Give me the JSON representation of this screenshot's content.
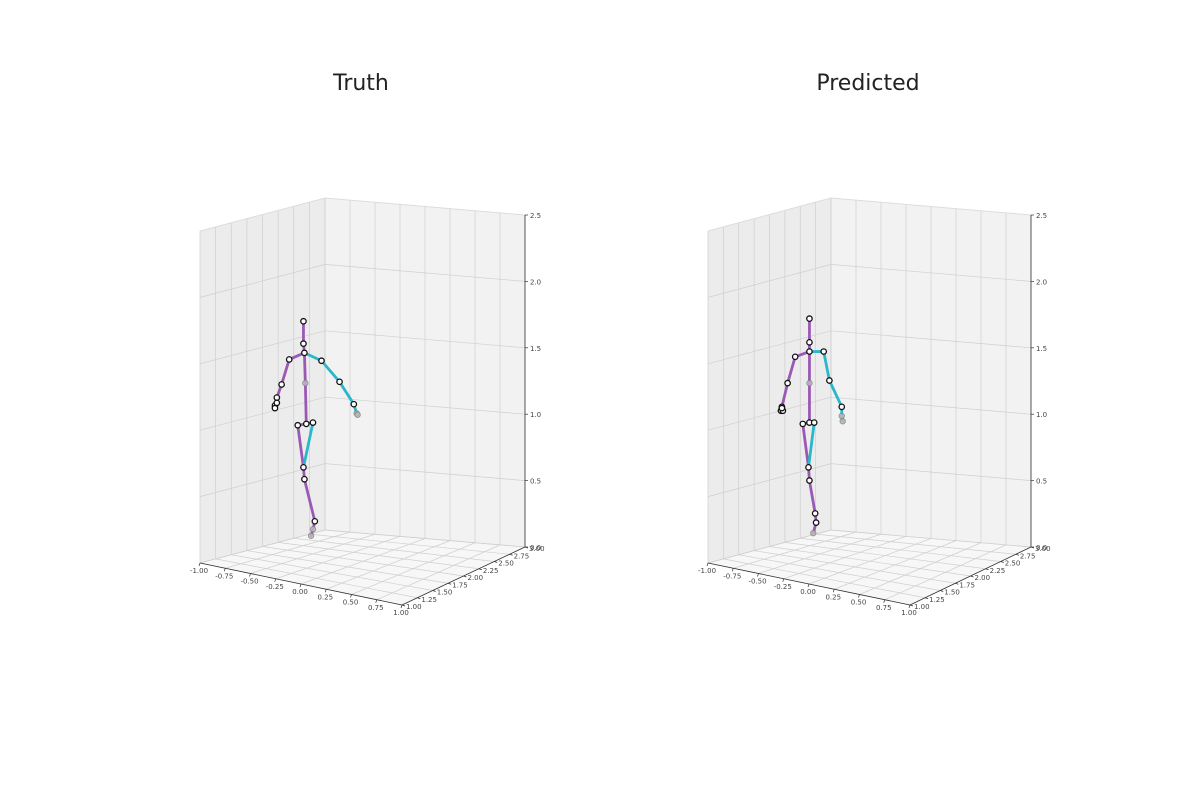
{
  "colors": {
    "left_limb": "#9b59b6",
    "right_limb": "#2ab7c9",
    "spine": "#9b59b6"
  },
  "chart_data": [
    {
      "type": "scatter3d",
      "title": "Truth",
      "xlabel": "",
      "ylabel": "",
      "zlabel": "",
      "xlim": [
        -1.0,
        1.0
      ],
      "ylim": [
        1.0,
        3.0
      ],
      "zlim": [
        0.0,
        2.5
      ],
      "xticks": [
        "-1.00",
        "-0.75",
        "-0.50",
        "-0.25",
        "0.00",
        "0.25",
        "0.50",
        "0.75",
        "1.00"
      ],
      "yticks": [
        "1.00",
        "1.25",
        "1.50",
        "1.75",
        "2.00",
        "2.25",
        "2.50",
        "2.75",
        "3.00"
      ],
      "zticks": [
        "0.0",
        "0.5",
        "1.0",
        "1.5",
        "2.0",
        "2.5"
      ],
      "grid": true,
      "joints": [
        {
          "name": "head-top",
          "x": 0.26,
          "y": 2.0,
          "z": 1.7
        },
        {
          "name": "neck",
          "x": 0.26,
          "y": 2.0,
          "z": 1.53
        },
        {
          "name": "spine-top",
          "x": 0.27,
          "y": 2.0,
          "z": 1.46
        },
        {
          "name": "spine-mid",
          "x": 0.28,
          "y": 2.0,
          "z": 1.23
        },
        {
          "name": "pelvis",
          "x": 0.29,
          "y": 2.0,
          "z": 0.92
        },
        {
          "name": "left-shoulder",
          "x": 0.11,
          "y": 2.0,
          "z": 1.41
        },
        {
          "name": "left-elbow",
          "x": 0.03,
          "y": 2.0,
          "z": 1.22
        },
        {
          "name": "left-wrist",
          "x": -0.02,
          "y": 2.0,
          "z": 1.12
        },
        {
          "name": "left-hand-a",
          "x": -0.04,
          "y": 2.0,
          "z": 1.06
        },
        {
          "name": "left-hand-b",
          "x": -0.04,
          "y": 2.0,
          "z": 1.04
        },
        {
          "name": "left-hand-c",
          "x": -0.02,
          "y": 2.0,
          "z": 1.08
        },
        {
          "name": "right-shoulder",
          "x": 0.45,
          "y": 2.0,
          "z": 1.4
        },
        {
          "name": "right-elbow",
          "x": 0.64,
          "y": 2.0,
          "z": 1.24
        },
        {
          "name": "right-wrist",
          "x": 0.79,
          "y": 2.0,
          "z": 1.07
        },
        {
          "name": "right-hand-a",
          "x": 0.82,
          "y": 2.0,
          "z": 1.0
        },
        {
          "name": "right-hand-b",
          "x": 0.83,
          "y": 2.0,
          "z": 0.99
        },
        {
          "name": "left-hip",
          "x": 0.2,
          "y": 2.0,
          "z": 0.91
        },
        {
          "name": "right-hip",
          "x": 0.36,
          "y": 2.0,
          "z": 0.93
        },
        {
          "name": "left-knee",
          "x": 0.26,
          "y": 2.0,
          "z": 0.59
        },
        {
          "name": "left-knee-b",
          "x": 0.27,
          "y": 2.0,
          "z": 0.5
        },
        {
          "name": "left-ankle",
          "x": 0.38,
          "y": 2.0,
          "z": 0.18
        },
        {
          "name": "left-foot",
          "x": 0.36,
          "y": 2.0,
          "z": 0.12
        },
        {
          "name": "left-toe",
          "x": 0.34,
          "y": 2.0,
          "z": 0.07
        }
      ],
      "bones": [
        {
          "from": "head-top",
          "to": "neck",
          "side": "spine"
        },
        {
          "from": "neck",
          "to": "spine-top",
          "side": "spine"
        },
        {
          "from": "spine-top",
          "to": "spine-mid",
          "side": "spine"
        },
        {
          "from": "spine-mid",
          "to": "pelvis",
          "side": "spine"
        },
        {
          "from": "spine-top",
          "to": "left-shoulder",
          "side": "left"
        },
        {
          "from": "left-shoulder",
          "to": "left-elbow",
          "side": "left"
        },
        {
          "from": "left-elbow",
          "to": "left-wrist",
          "side": "left"
        },
        {
          "from": "left-wrist",
          "to": "left-hand-a",
          "side": "left"
        },
        {
          "from": "left-hand-a",
          "to": "left-hand-b",
          "side": "left"
        },
        {
          "from": "spine-top",
          "to": "right-shoulder",
          "side": "right"
        },
        {
          "from": "right-shoulder",
          "to": "right-elbow",
          "side": "right"
        },
        {
          "from": "right-elbow",
          "to": "right-wrist",
          "side": "right"
        },
        {
          "from": "right-wrist",
          "to": "right-hand-a",
          "side": "right"
        },
        {
          "from": "right-hand-a",
          "to": "right-hand-b",
          "side": "right"
        },
        {
          "from": "pelvis",
          "to": "left-hip",
          "side": "left"
        },
        {
          "from": "pelvis",
          "to": "right-hip",
          "side": "right"
        },
        {
          "from": "left-hip",
          "to": "left-knee",
          "side": "left"
        },
        {
          "from": "right-hip",
          "to": "left-knee",
          "side": "right"
        },
        {
          "from": "left-knee",
          "to": "left-knee-b",
          "side": "left"
        },
        {
          "from": "left-knee-b",
          "to": "left-ankle",
          "side": "left"
        },
        {
          "from": "left-ankle",
          "to": "left-foot",
          "side": "left"
        },
        {
          "from": "left-foot",
          "to": "left-toe",
          "side": "left"
        }
      ],
      "faded_joints": [
        "spine-mid",
        "right-hand-a",
        "right-hand-b",
        "left-foot",
        "left-toe"
      ]
    },
    {
      "type": "scatter3d",
      "title": "Predicted",
      "xlabel": "",
      "ylabel": "",
      "zlabel": "",
      "xlim": [
        -1.0,
        1.0
      ],
      "ylim": [
        1.0,
        3.0
      ],
      "zlim": [
        0.0,
        2.5
      ],
      "xticks": [
        "-1.00",
        "-0.75",
        "-0.50",
        "-0.25",
        "0.00",
        "0.25",
        "0.50",
        "0.75",
        "1.00"
      ],
      "yticks": [
        "1.00",
        "1.25",
        "1.50",
        "1.75",
        "2.00",
        "2.25",
        "2.50",
        "2.75",
        "3.00"
      ],
      "zticks": [
        "0.0",
        "0.5",
        "1.0",
        "1.5",
        "2.0",
        "2.5"
      ],
      "grid": true,
      "joints": [
        {
          "name": "head-top",
          "x": 0.26,
          "y": 2.0,
          "z": 1.72
        },
        {
          "name": "neck",
          "x": 0.26,
          "y": 2.0,
          "z": 1.54
        },
        {
          "name": "spine-top",
          "x": 0.26,
          "y": 2.0,
          "z": 1.47
        },
        {
          "name": "spine-mid",
          "x": 0.26,
          "y": 2.0,
          "z": 1.23
        },
        {
          "name": "pelvis",
          "x": 0.26,
          "y": 2.0,
          "z": 0.93
        },
        {
          "name": "left-shoulder",
          "x": 0.11,
          "y": 2.0,
          "z": 1.43
        },
        {
          "name": "left-elbow",
          "x": 0.03,
          "y": 2.0,
          "z": 1.23
        },
        {
          "name": "left-wrist",
          "x": -0.03,
          "y": 2.0,
          "z": 1.05
        },
        {
          "name": "left-hand-a",
          "x": -0.04,
          "y": 2.0,
          "z": 1.02
        },
        {
          "name": "left-hand-b",
          "x": -0.02,
          "y": 2.0,
          "z": 1.02
        },
        {
          "name": "left-hand-c",
          "x": -0.03,
          "y": 2.0,
          "z": 1.04
        },
        {
          "name": "right-shoulder",
          "x": 0.41,
          "y": 2.0,
          "z": 1.47
        },
        {
          "name": "right-elbow",
          "x": 0.47,
          "y": 2.0,
          "z": 1.25
        },
        {
          "name": "right-wrist",
          "x": 0.6,
          "y": 2.0,
          "z": 1.05
        },
        {
          "name": "right-hand-a",
          "x": 0.6,
          "y": 2.0,
          "z": 0.98
        },
        {
          "name": "right-hand-b",
          "x": 0.61,
          "y": 2.0,
          "z": 0.94
        },
        {
          "name": "left-hip",
          "x": 0.19,
          "y": 2.0,
          "z": 0.92
        },
        {
          "name": "right-hip",
          "x": 0.31,
          "y": 2.0,
          "z": 0.93
        },
        {
          "name": "left-knee",
          "x": 0.25,
          "y": 2.0,
          "z": 0.59
        },
        {
          "name": "left-knee-b",
          "x": 0.26,
          "y": 2.0,
          "z": 0.49
        },
        {
          "name": "left-ankle",
          "x": 0.32,
          "y": 2.0,
          "z": 0.24
        },
        {
          "name": "left-foot",
          "x": 0.33,
          "y": 2.0,
          "z": 0.17
        },
        {
          "name": "left-toe",
          "x": 0.3,
          "y": 2.0,
          "z": 0.09
        }
      ],
      "bones": [
        {
          "from": "head-top",
          "to": "neck",
          "side": "spine"
        },
        {
          "from": "neck",
          "to": "spine-top",
          "side": "spine"
        },
        {
          "from": "spine-top",
          "to": "spine-mid",
          "side": "spine"
        },
        {
          "from": "spine-mid",
          "to": "pelvis",
          "side": "spine"
        },
        {
          "from": "spine-top",
          "to": "left-shoulder",
          "side": "left"
        },
        {
          "from": "left-shoulder",
          "to": "left-elbow",
          "side": "left"
        },
        {
          "from": "left-elbow",
          "to": "left-wrist",
          "side": "left"
        },
        {
          "from": "left-wrist",
          "to": "left-hand-a",
          "side": "left"
        },
        {
          "from": "left-hand-a",
          "to": "left-hand-b",
          "side": "left"
        },
        {
          "from": "spine-top",
          "to": "right-shoulder",
          "side": "right"
        },
        {
          "from": "right-shoulder",
          "to": "right-elbow",
          "side": "right"
        },
        {
          "from": "right-elbow",
          "to": "right-wrist",
          "side": "right"
        },
        {
          "from": "right-wrist",
          "to": "right-hand-a",
          "side": "right"
        },
        {
          "from": "right-hand-a",
          "to": "right-hand-b",
          "side": "right"
        },
        {
          "from": "pelvis",
          "to": "left-hip",
          "side": "left"
        },
        {
          "from": "pelvis",
          "to": "right-hip",
          "side": "right"
        },
        {
          "from": "left-hip",
          "to": "left-knee",
          "side": "left"
        },
        {
          "from": "right-hip",
          "to": "left-knee",
          "side": "right"
        },
        {
          "from": "left-knee",
          "to": "left-knee-b",
          "side": "left"
        },
        {
          "from": "left-knee-b",
          "to": "left-ankle",
          "side": "left"
        },
        {
          "from": "left-ankle",
          "to": "left-foot",
          "side": "left"
        },
        {
          "from": "left-foot",
          "to": "left-toe",
          "side": "left"
        }
      ],
      "faded_joints": [
        "spine-mid",
        "right-hand-a",
        "right-hand-b",
        "left-toe"
      ]
    }
  ]
}
